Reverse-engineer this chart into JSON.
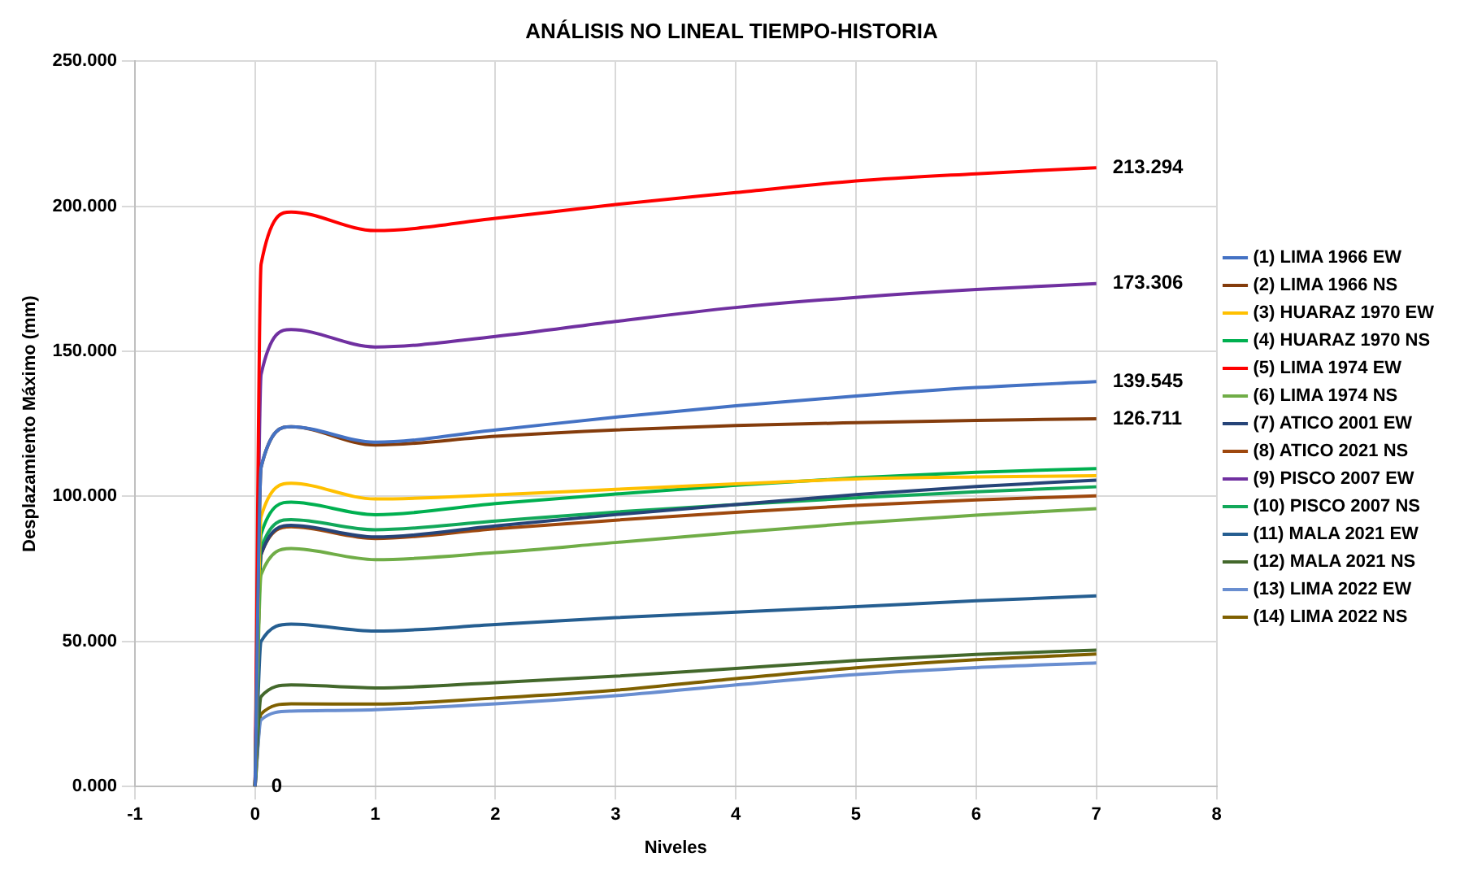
{
  "chart_data": {
    "type": "line",
    "title": "ANÁLISIS NO LINEAL TIEMPO-HISTORIA",
    "xlabel": "Niveles",
    "ylabel": "Desplazamiento Máximo (mm)",
    "x": [
      0,
      0.05,
      0.3,
      1,
      2,
      3,
      4,
      5,
      6,
      7
    ],
    "xlim": [
      -1,
      8
    ],
    "xticks": [
      -1,
      0,
      1,
      2,
      3,
      4,
      5,
      6,
      7,
      8
    ],
    "ylim": [
      0,
      250
    ],
    "yticks": [
      {
        "value": 0,
        "label": "0.000"
      },
      {
        "value": 50,
        "label": "50.000"
      },
      {
        "value": 100,
        "label": "100.000"
      },
      {
        "value": 150,
        "label": "150.000"
      },
      {
        "value": 200,
        "label": "200.000"
      },
      {
        "value": 250,
        "label": "250.000"
      }
    ],
    "grid": true,
    "legend": "right",
    "marker": "none",
    "line_style": "solid",
    "annotations": [
      {
        "text": "0",
        "x": 0,
        "y": 0
      }
    ],
    "series": [
      {
        "name": "(1) LIMA 1966 EW",
        "color": "#4472c4",
        "values": [
          0,
          110,
          124,
          118.7,
          122.9,
          127.3,
          131.2,
          134.6,
          137.5,
          139.545
        ],
        "value_labels": [
          null,
          null,
          null,
          null,
          null,
          null,
          null,
          null,
          null,
          "139.545"
        ]
      },
      {
        "name": "(2) LIMA 1966 NS",
        "color": "#843c0c",
        "values": [
          0,
          110,
          124,
          117.7,
          120.7,
          122.9,
          124.4,
          125.4,
          126.2,
          126.711
        ],
        "value_labels": [
          null,
          null,
          null,
          null,
          null,
          null,
          null,
          null,
          null,
          "126.711"
        ]
      },
      {
        "name": "(3) HUARAZ 1970 EW",
        "color": "#ffc000",
        "values": [
          0,
          93,
          104.5,
          99.1,
          100.5,
          102.4,
          104.3,
          106.0,
          106.7,
          107.1
        ]
      },
      {
        "name": "(4) HUARAZ 1970 NS",
        "color": "#00b050",
        "values": [
          0,
          87,
          98,
          93.7,
          97.5,
          100.8,
          103.8,
          106.4,
          108.3,
          109.6
        ]
      },
      {
        "name": "(5) LIMA 1974 EW",
        "color": "#ff0000",
        "values": [
          0,
          180,
          198,
          191.6,
          195.8,
          200.6,
          204.7,
          208.7,
          211.2,
          213.294
        ],
        "value_labels": [
          null,
          null,
          null,
          null,
          null,
          null,
          null,
          null,
          null,
          "213.294"
        ]
      },
      {
        "name": "(6) LIMA 1974 NS",
        "color": "#70ad47",
        "values": [
          0,
          73,
          82,
          78.2,
          80.6,
          84.1,
          87.6,
          90.8,
          93.5,
          95.8
        ]
      },
      {
        "name": "(7) ATICO 2001 EW",
        "color": "#264478",
        "values": [
          0,
          80,
          90,
          86.0,
          89.8,
          93.7,
          97.2,
          100.6,
          103.4,
          105.6
        ]
      },
      {
        "name": "(8) ATICO 2021 NS",
        "color": "#9e480e",
        "values": [
          0,
          80,
          89.5,
          85.5,
          88.8,
          91.8,
          94.5,
          96.9,
          98.8,
          100.2
        ]
      },
      {
        "name": "(9) PISCO 2007 EW",
        "color": "#7030a0",
        "values": [
          0,
          142,
          157.5,
          151.5,
          155.1,
          160.3,
          165.1,
          168.6,
          171.3,
          173.306
        ],
        "value_labels": [
          null,
          null,
          null,
          null,
          null,
          null,
          null,
          null,
          null,
          "173.306"
        ]
      },
      {
        "name": "(10) PISCO 2007 NS",
        "color": "#12a85a",
        "values": [
          0,
          82,
          92,
          88.5,
          91.5,
          94.6,
          97.2,
          99.5,
          101.6,
          103.3
        ]
      },
      {
        "name": "(11) MALA 2021 EW",
        "color": "#255e91",
        "values": [
          0,
          50,
          56,
          53.6,
          55.8,
          58.2,
          60.1,
          62.0,
          64.0,
          65.7
        ]
      },
      {
        "name": "(12) MALA 2021 NS",
        "color": "#43682b",
        "values": [
          0,
          31,
          35,
          34.0,
          35.8,
          38.0,
          40.7,
          43.4,
          45.5,
          47.0
        ]
      },
      {
        "name": "(13) LIMA 2022 EW",
        "color": "#698ed0",
        "values": [
          0,
          23,
          26,
          26.5,
          28.5,
          31.3,
          35.0,
          38.6,
          41.0,
          42.6
        ]
      },
      {
        "name": "(14) LIMA 2022 NS",
        "color": "#7f6000",
        "values": [
          0,
          25,
          28.5,
          28.4,
          30.5,
          33.2,
          37.2,
          40.9,
          43.7,
          45.7
        ]
      }
    ]
  }
}
